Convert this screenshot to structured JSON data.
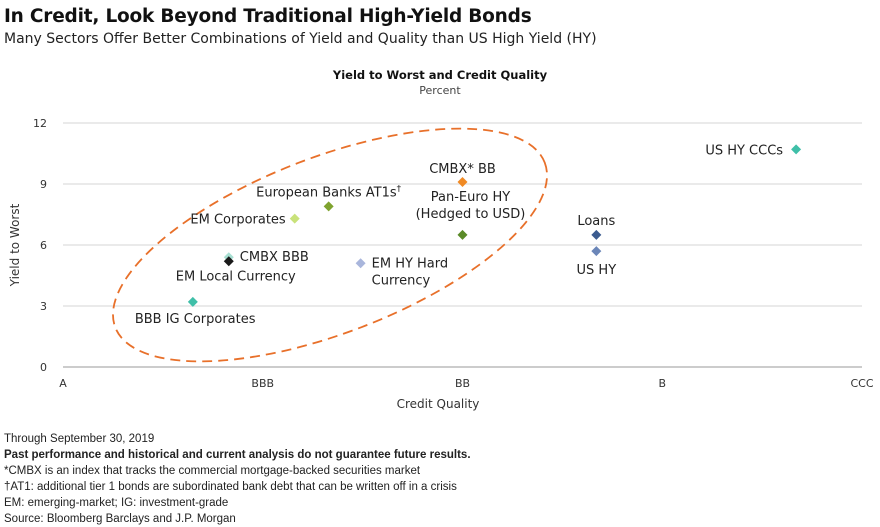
{
  "header": {
    "title": "In Credit, Look Beyond Traditional High-Yield Bonds",
    "subtitle": "Many Sectors Offer Better Combinations of Yield and Quality than US High Yield (HY)"
  },
  "chart_data": {
    "type": "scatter",
    "title": "Yield to Worst and Credit Quality",
    "subtitle": "Percent",
    "xlabel": "Credit Quality",
    "ylabel": "Yield to Worst",
    "x_categories": [
      "A",
      "BBB",
      "BB",
      "B",
      "CCC"
    ],
    "xlim": [
      0,
      4
    ],
    "ylim": [
      0,
      12
    ],
    "yticks": [
      0,
      3,
      6,
      9,
      12
    ],
    "grid": "horizontal",
    "points": [
      {
        "name": "US HY CCCs",
        "x": 3.67,
        "y": 10.7,
        "color": "#3fbfa8"
      },
      {
        "name": "CMBX* BB",
        "x": 2.0,
        "y": 9.1,
        "color": "#f08a24"
      },
      {
        "name": "European Banks AT1s†",
        "x": 1.33,
        "y": 7.9,
        "color": "#7fa32f"
      },
      {
        "name": "EM Corporates",
        "x": 1.16,
        "y": 7.3,
        "color": "#c9e27a"
      },
      {
        "name": "Pan-Euro HY\n(Hedged to USD)",
        "x": 2.0,
        "y": 6.5,
        "color": "#5a8a28"
      },
      {
        "name": "Loans",
        "x": 2.67,
        "y": 6.5,
        "color": "#3b5b8f"
      },
      {
        "name": "US HY",
        "x": 2.67,
        "y": 5.7,
        "color": "#6b86b8"
      },
      {
        "name": "CMBX BBB",
        "x": 0.83,
        "y": 5.4,
        "color": "#a8dfd2"
      },
      {
        "name": "EM Local Currency",
        "x": 0.83,
        "y": 5.2,
        "color": "#1a1a1a"
      },
      {
        "name": "EM HY Hard\nCurrency",
        "x": 1.49,
        "y": 5.1,
        "color": "#a9b6dc"
      },
      {
        "name": "BBB IG Corporates",
        "x": 0.65,
        "y": 3.2,
        "color": "#3fbfa8"
      }
    ],
    "annotations": [
      {
        "type": "dashed-ellipse",
        "note": "highlighted sectors",
        "color": "#e8702a"
      }
    ]
  },
  "footnotes": {
    "date": "Through September 30, 2019",
    "disclaimer": "Past performance and historical and current analysis do not guarantee future results.",
    "cmbx": "*CMBX is an index that tracks the commercial mortgage-backed securities market",
    "at1": "†AT1: additional tier 1 bonds are subordinated bank debt that can be written off in a crisis",
    "abbrev": "EM: emerging-market; IG: investment-grade",
    "source": "Source: Bloomberg Barclays and J.P. Morgan"
  }
}
